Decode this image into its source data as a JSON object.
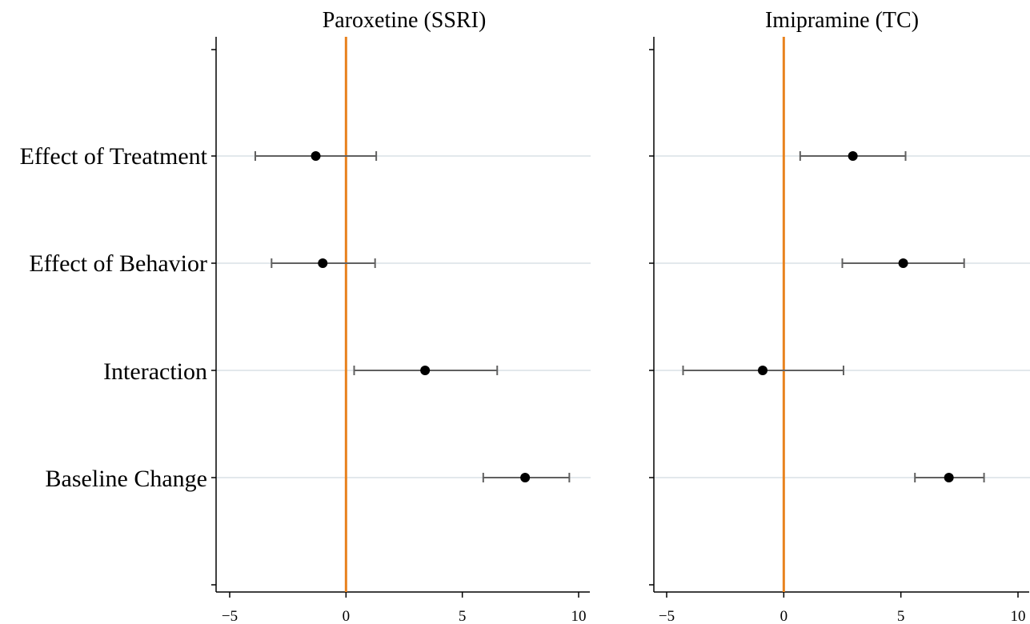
{
  "chart_data": {
    "type": "coefficient-plot",
    "categories": [
      "Effect of Treatment",
      "Effect of Behavior",
      "Interaction",
      "Baseline Change"
    ],
    "xlim": [
      -5.5,
      10.5
    ],
    "xticks": [
      -5,
      0,
      5,
      10
    ],
    "xtick_labels": [
      "−5",
      "0",
      "5",
      "10"
    ],
    "reference_line": {
      "x": 0,
      "color": "#e8821e"
    },
    "grid": "horizontal light gridlines at each category",
    "colors": {
      "point": "#000000",
      "interval": "#606060",
      "grid": "#e3e8ec",
      "axis": "#000000"
    },
    "panels": [
      {
        "title": "Paroxetine (SSRI)",
        "estimates": [
          -1.3,
          -1.0,
          3.4,
          7.7
        ],
        "ci_low": [
          -3.9,
          -3.2,
          0.35,
          5.9
        ],
        "ci_high": [
          1.3,
          1.25,
          6.5,
          9.6
        ]
      },
      {
        "title": "Imipramine (TC)",
        "estimates": [
          2.95,
          5.1,
          -0.9,
          7.05
        ],
        "ci_low": [
          0.7,
          2.5,
          -4.3,
          5.6
        ],
        "ci_high": [
          5.2,
          7.7,
          2.55,
          8.55
        ]
      }
    ]
  }
}
